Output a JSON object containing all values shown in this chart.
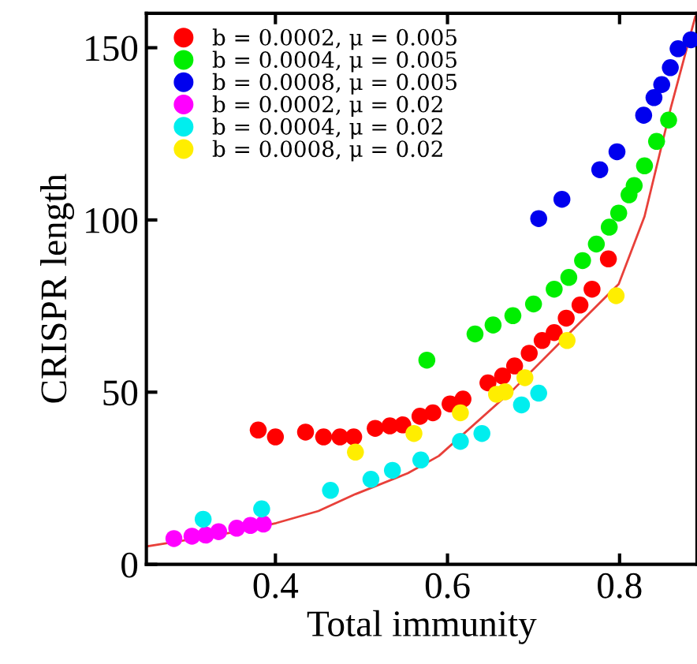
{
  "chart_data": {
    "type": "scatter",
    "xlabel": "Total immunity",
    "ylabel": "CRISPR length",
    "xlim": [
      0.25,
      0.89
    ],
    "ylim": [
      0,
      160
    ],
    "xticks": [
      0.4,
      0.6,
      0.8
    ],
    "yticks": [
      0,
      50,
      100,
      150
    ],
    "grid": false,
    "legend": "top left",
    "marker": "circle",
    "series": [
      {
        "name": "b = 0.0002, μ = 0.005",
        "color": "#ff0000",
        "x": [
          0.38,
          0.4,
          0.435,
          0.456,
          0.475,
          0.491,
          0.516,
          0.533,
          0.548,
          0.568,
          0.583,
          0.603,
          0.618,
          0.647,
          0.664,
          0.678,
          0.695,
          0.71,
          0.724,
          0.738,
          0.754,
          0.768,
          0.787
        ],
        "values": [
          39,
          37,
          38.4,
          37,
          37,
          37,
          39.5,
          40.2,
          40.5,
          43,
          44,
          46.6,
          48,
          52.7,
          54.7,
          57.6,
          61.3,
          65,
          67.3,
          71.5,
          75.3,
          79.9,
          88.7
        ]
      },
      {
        "name": "b = 0.0004, μ = 0.005",
        "color": "#00ee00",
        "x": [
          0.576,
          0.632,
          0.653,
          0.676,
          0.7,
          0.724,
          0.741,
          0.757,
          0.773,
          0.788,
          0.799,
          0.811,
          0.817,
          0.829,
          0.843,
          0.857
        ],
        "values": [
          59.3,
          66.9,
          69.5,
          72.2,
          75.6,
          79.9,
          83.3,
          88.2,
          93,
          97.9,
          102,
          107.3,
          110,
          115.7,
          122.8,
          129
        ]
      },
      {
        "name": "b = 0.0008, μ = 0.005",
        "color": "#0000ee",
        "x": [
          0.706,
          0.733,
          0.777,
          0.797,
          0.828,
          0.84,
          0.849,
          0.859,
          0.868,
          0.883
        ],
        "values": [
          100.4,
          106,
          114.6,
          119.8,
          130.4,
          135.5,
          139.3,
          144.2,
          149.7,
          152.3
        ]
      },
      {
        "name": "b = 0.0002, μ = 0.02",
        "color": "#ff00ff",
        "x": [
          0.282,
          0.303,
          0.319,
          0.334,
          0.355,
          0.371,
          0.386
        ],
        "values": [
          7.5,
          8.2,
          8.5,
          9.5,
          10.5,
          11.3,
          11.7
        ]
      },
      {
        "name": "b = 0.0004, μ = 0.02",
        "color": "#00eeee",
        "x": [
          0.316,
          0.384,
          0.464,
          0.511,
          0.536,
          0.569,
          0.615,
          0.64,
          0.686,
          0.706
        ],
        "values": [
          13.1,
          16.1,
          21.5,
          24.7,
          27.3,
          30.3,
          35.7,
          38,
          46.3,
          49.7
        ]
      },
      {
        "name": "b = 0.0008, μ = 0.02",
        "color": "#ffee00",
        "x": [
          0.493,
          0.561,
          0.615,
          0.657,
          0.667,
          0.69,
          0.739,
          0.796
        ],
        "values": [
          32.6,
          38,
          44,
          49.4,
          50.1,
          54.2,
          65,
          78
        ]
      },
      {
        "type": "line",
        "color": "#e8403a",
        "marker": "none",
        "x": [
          0.25,
          0.3,
          0.35,
          0.401,
          0.45,
          0.493,
          0.554,
          0.59,
          0.677,
          0.738,
          0.799,
          0.829,
          0.86,
          0.888
        ],
        "values": [
          5.2,
          7.2,
          9.3,
          12,
          15.5,
          20.4,
          26.5,
          31.5,
          50.9,
          66.2,
          81.4,
          101,
          133,
          159
        ]
      }
    ]
  }
}
